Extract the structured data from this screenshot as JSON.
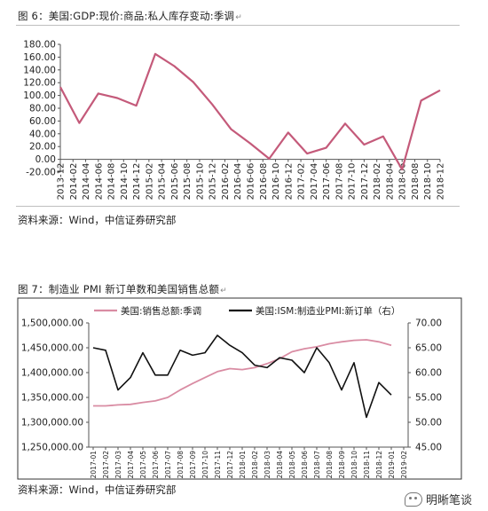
{
  "figure6": {
    "caption": "图 6：美国:GDP:现价:商品:私人库存变动:季调",
    "source": "资料来源：Wind，中信证券研究部",
    "chart_data": {
      "type": "line",
      "title": "",
      "x": [
        "2013-12",
        "2014-02",
        "2014-04",
        "2014-06",
        "2014-08",
        "2014-10",
        "2014-12",
        "2015-02",
        "2015-04",
        "2015-06",
        "2015-08",
        "2015-10",
        "2015-12",
        "2016-02",
        "2016-04",
        "2016-06",
        "2016-08",
        "2016-10",
        "2016-12",
        "2017-02",
        "2017-04",
        "2017-06",
        "2017-08",
        "2017-10",
        "2017-12",
        "2018-02",
        "2018-04",
        "2018-06",
        "2018-08",
        "2018-10",
        "2018-12"
      ],
      "series": [
        {
          "name": "",
          "color": "#c45a7a",
          "points": [
            [
              "2013-12",
              113
            ],
            [
              "2014-03",
              57
            ],
            [
              "2014-06",
              103
            ],
            [
              "2014-09",
              96
            ],
            [
              "2014-12",
              84
            ],
            [
              "2015-03",
              165
            ],
            [
              "2015-06",
              146
            ],
            [
              "2015-09",
              121
            ],
            [
              "2015-12",
              86
            ],
            [
              "2016-03",
              47
            ],
            [
              "2016-06",
              25
            ],
            [
              "2016-09",
              1
            ],
            [
              "2016-12",
              42
            ],
            [
              "2017-03",
              9
            ],
            [
              "2017-06",
              18
            ],
            [
              "2017-09",
              56
            ],
            [
              "2017-12",
              23
            ],
            [
              "2018-03",
              36
            ],
            [
              "2018-06",
              -16
            ],
            [
              "2018-09",
              92
            ],
            [
              "2018-12",
              108
            ]
          ]
        }
      ],
      "ylim": [
        -20,
        180
      ],
      "yticks": [
        "-20.00",
        "0.00",
        "20.00",
        "40.00",
        "60.00",
        "80.00",
        "100.00",
        "120.00",
        "140.00",
        "160.00",
        "180.00"
      ],
      "grid": false
    }
  },
  "figure7": {
    "caption": "图 7：制造业 PMI 新订单数和美国销售总额",
    "source": "资料来源：Wind，中信证券研究部",
    "chart_data": {
      "type": "line",
      "title": "",
      "x": [
        "2017-01",
        "2017-02",
        "2017-03",
        "2017-04",
        "2017-05",
        "2017-06",
        "2017-07",
        "2017-08",
        "2017-09",
        "2017-10",
        "2017-11",
        "2017-12",
        "2018-01",
        "2018-02",
        "2018-03",
        "2018-04",
        "2018-05",
        "2018-06",
        "2018-07",
        "2018-08",
        "2018-09",
        "2018-10",
        "2018-11",
        "2018-12",
        "2019-01",
        "2019-02"
      ],
      "series": [
        {
          "name": "美国:销售总额:季调",
          "axis": "left",
          "color": "#d98ca3",
          "values": [
            1333000,
            1333000,
            1335000,
            1336000,
            1340000,
            1343000,
            1350000,
            1365000,
            1378000,
            1390000,
            1402000,
            1408000,
            1406000,
            1410000,
            1418000,
            1428000,
            1442000,
            1448000,
            1452000,
            1458000,
            1462000,
            1465000,
            1466000,
            1462000,
            1455000,
            null
          ]
        },
        {
          "name": "美国:ISM:制造业PMI:新订单（右）",
          "axis": "right",
          "color": "#111111",
          "values": [
            65.0,
            64.5,
            56.5,
            59.0,
            64.0,
            59.5,
            59.5,
            64.5,
            63.5,
            64.0,
            67.5,
            65.5,
            64.0,
            61.5,
            61.0,
            63.0,
            62.5,
            60.0,
            65.0,
            62.0,
            56.5,
            62.0,
            51.0,
            58.0,
            55.5,
            null
          ]
        }
      ],
      "ylim_left": [
        1250000,
        1500000
      ],
      "yticks_left": [
        "1,250,000.00",
        "1,300,000.00",
        "1,350,000.00",
        "1,400,000.00",
        "1,450,000.00",
        "1,500,000.00"
      ],
      "ylim_right": [
        45,
        70
      ],
      "yticks_right": [
        "45.00",
        "50.00",
        "55.00",
        "60.00",
        "65.00",
        "70.00"
      ],
      "legend": "top"
    }
  },
  "watermark": "明晰笔谈"
}
